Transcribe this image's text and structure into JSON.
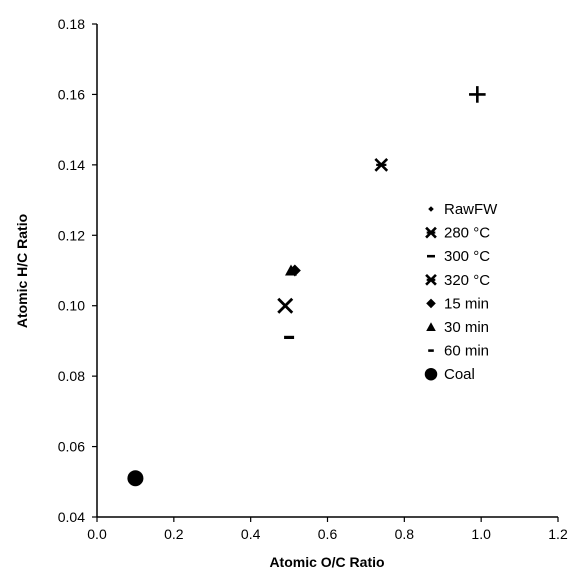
{
  "chart_data": {
    "type": "scatter",
    "xlabel": "Atomic O/C Ratio",
    "ylabel": "Atomic H/C Ratio",
    "xlim": [
      0.0,
      1.2
    ],
    "ylim": [
      0.04,
      0.18
    ],
    "xticks": [
      "0.0",
      "0.2",
      "0.4",
      "0.6",
      "0.8",
      "1.0",
      "1.2"
    ],
    "yticks": [
      "0.04",
      "0.06",
      "0.08",
      "0.10",
      "0.12",
      "0.14",
      "0.16",
      "0.18"
    ],
    "xtick_values": [
      0.0,
      0.2,
      0.4,
      0.6,
      0.8,
      1.0,
      1.2
    ],
    "ytick_values": [
      0.04,
      0.06,
      0.08,
      0.1,
      0.12,
      0.14,
      0.16,
      0.18
    ],
    "grid": false,
    "legend_position": "right",
    "series": [
      {
        "name": "RawFW",
        "marker": "plus",
        "x": [
          0.99
        ],
        "y": [
          0.16
        ]
      },
      {
        "name": "280 °C",
        "marker": "x-star",
        "x": [
          0.74
        ],
        "y": [
          0.14
        ]
      },
      {
        "name": "300 °C",
        "marker": "dash",
        "x": [
          0.5
        ],
        "y": [
          0.091
        ]
      },
      {
        "name": "320 °C",
        "marker": "x",
        "x": [
          0.49
        ],
        "y": [
          0.1
        ]
      },
      {
        "name": "15 min",
        "marker": "diamond",
        "x": [
          0.515
        ],
        "y": [
          0.11
        ]
      },
      {
        "name": "30 min",
        "marker": "triangle",
        "x": [
          0.505
        ],
        "y": [
          0.11
        ]
      },
      {
        "name": "60 min",
        "marker": "dash-small",
        "x": [
          0.51
        ],
        "y": [
          0.11
        ]
      },
      {
        "name": "Coal",
        "marker": "circle",
        "x": [
          0.1
        ],
        "y": [
          0.051
        ]
      }
    ],
    "legend_markers": [
      "dot-small",
      "x-star",
      "dash",
      "x-star",
      "diamond",
      "triangle",
      "dash-small",
      "circle"
    ]
  }
}
